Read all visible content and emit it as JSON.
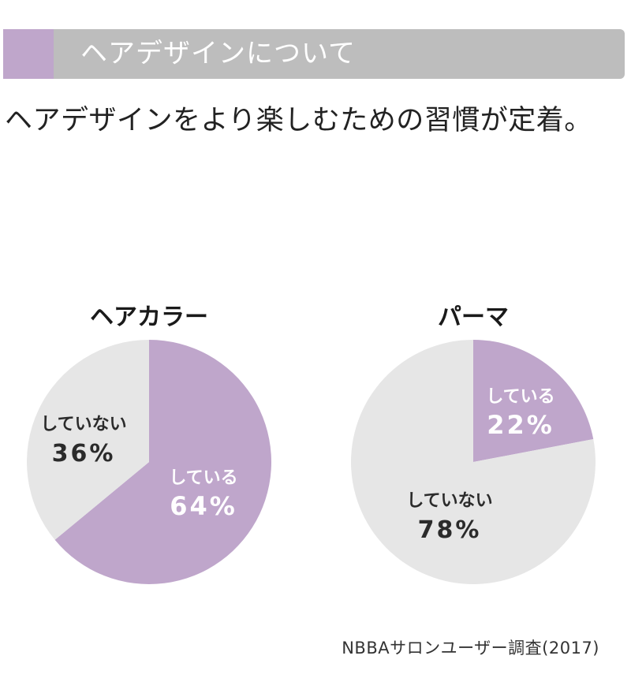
{
  "header": {
    "title": "ヘアデザインについて"
  },
  "subtitle": "ヘアデザインをより楽しむための習慣が定着。",
  "colors": {
    "accent": "#bfa6cb",
    "header_bg": "#bdbdbd",
    "slice_light": "#e6e6e6",
    "text_dark": "#2b2b2b",
    "text_light": "#ffffff"
  },
  "chart_data": [
    {
      "type": "pie",
      "title": "ヘアカラー",
      "slices": [
        {
          "label": "している",
          "value": 64,
          "value_label": "64%",
          "color": "#bfa6cb"
        },
        {
          "label": "していない",
          "value": 36,
          "value_label": "36%",
          "color": "#e6e6e6"
        }
      ]
    },
    {
      "type": "pie",
      "title": "パーマ",
      "slices": [
        {
          "label": "している",
          "value": 22,
          "value_label": "22%",
          "color": "#bfa6cb"
        },
        {
          "label": "していない",
          "value": 78,
          "value_label": "78%",
          "color": "#e6e6e6"
        }
      ]
    }
  ],
  "source": "NBBAサロンユーザー調査(2017)"
}
